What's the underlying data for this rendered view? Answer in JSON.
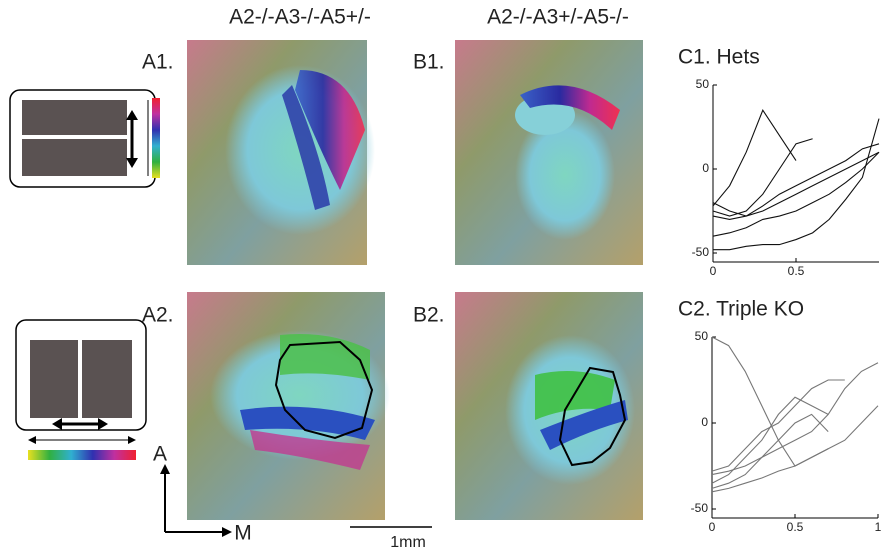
{
  "columns": [
    "A2-/-A3-/-A5+/-",
    "A2-/-A3+/-A5-/-"
  ],
  "panels": [
    "A1.",
    "B1.",
    "A2.",
    "B2."
  ],
  "axes_labels": {
    "anterior": "A",
    "medial": "M"
  },
  "scale_bar": "1mm",
  "chart_data": [
    {
      "type": "line",
      "title": "C1. Hets",
      "x": [
        0,
        0.1,
        0.2,
        0.3,
        0.4,
        0.5,
        0.6,
        0.7,
        0.8,
        0.9,
        1
      ],
      "xlim": [
        0,
        1
      ],
      "xticks": [
        0,
        0.5
      ],
      "ylim": [
        -50,
        50
      ],
      "yticks": [
        -50,
        0,
        50
      ],
      "series": [
        {
          "color": "#111111",
          "values": [
            -22,
            -10,
            10,
            35,
            20,
            5,
            null,
            null,
            null,
            null,
            null
          ]
        },
        {
          "color": "#111111",
          "values": [
            -25,
            -28,
            -25,
            -15,
            0,
            15,
            18,
            null,
            null,
            null,
            null
          ]
        },
        {
          "color": "#111111",
          "values": [
            -20,
            -25,
            -28,
            -22,
            -15,
            -10,
            -5,
            0,
            5,
            12,
            15
          ]
        },
        {
          "color": "#111111",
          "values": [
            -28,
            -30,
            -28,
            -25,
            -20,
            -15,
            -10,
            -5,
            0,
            5,
            10
          ]
        },
        {
          "color": "#111111",
          "values": [
            -40,
            -38,
            -35,
            -30,
            -28,
            -25,
            -20,
            -15,
            -8,
            0,
            10
          ]
        },
        {
          "color": "#111111",
          "values": [
            -48,
            -48,
            -46,
            -45,
            -45,
            -42,
            -38,
            -30,
            -18,
            -5,
            30
          ]
        }
      ]
    },
    {
      "type": "line",
      "title": "C2. Triple KO",
      "x": [
        0,
        0.1,
        0.2,
        0.3,
        0.4,
        0.5,
        0.6,
        0.7,
        0.8,
        0.9,
        1
      ],
      "xlim": [
        0,
        1
      ],
      "xticks": [
        0,
        0.5,
        1
      ],
      "ylim": [
        -50,
        50
      ],
      "yticks": [
        -50,
        0,
        50
      ],
      "series": [
        {
          "color": "#777777",
          "values": [
            50,
            45,
            30,
            10,
            -10,
            -25,
            -20,
            -15,
            null,
            null,
            null
          ]
        },
        {
          "color": "#777777",
          "values": [
            -28,
            -25,
            -15,
            -5,
            0,
            10,
            20,
            25,
            25,
            null,
            null
          ]
        },
        {
          "color": "#777777",
          "values": [
            -35,
            -30,
            -20,
            -10,
            5,
            15,
            10,
            5,
            null,
            null,
            null
          ]
        },
        {
          "color": "#777777",
          "values": [
            -38,
            -35,
            -30,
            -20,
            -10,
            0,
            5,
            -5,
            null,
            null,
            null
          ]
        },
        {
          "color": "#777777",
          "values": [
            -30,
            -28,
            -25,
            -20,
            -15,
            -10,
            -5,
            5,
            20,
            30,
            35
          ]
        },
        {
          "color": "#777777",
          "values": [
            -40,
            -38,
            -35,
            -32,
            -28,
            -25,
            -20,
            -15,
            -10,
            0,
            10
          ]
        }
      ]
    }
  ]
}
